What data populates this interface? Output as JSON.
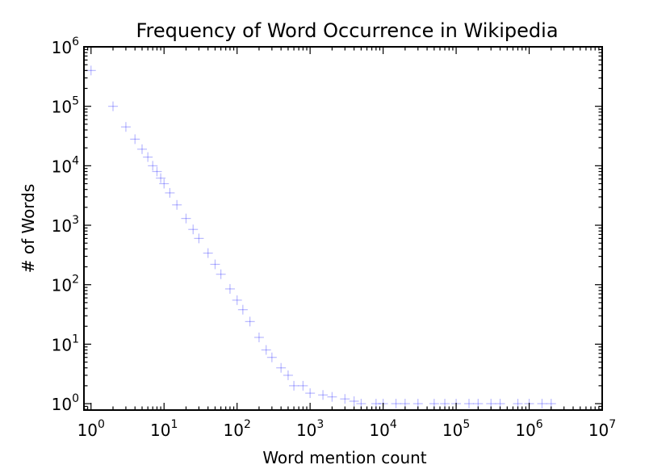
{
  "chart_data": {
    "type": "scatter",
    "title": "Frequency of Word Occurrence in Wikipedia",
    "xlabel": "Word mention count",
    "ylabel": "# of Words",
    "xscale": "log",
    "yscale": "log",
    "xlim": [
      0.8,
      10000000
    ],
    "ylim": [
      0.78,
      1000000
    ],
    "x_ticks": [
      {
        "base": "10",
        "exp": "0",
        "value": 1
      },
      {
        "base": "10",
        "exp": "1",
        "value": 10
      },
      {
        "base": "10",
        "exp": "2",
        "value": 100
      },
      {
        "base": "10",
        "exp": "3",
        "value": 1000
      },
      {
        "base": "10",
        "exp": "4",
        "value": 10000
      },
      {
        "base": "10",
        "exp": "5",
        "value": 100000
      },
      {
        "base": "10",
        "exp": "6",
        "value": 1000000
      },
      {
        "base": "10",
        "exp": "7",
        "value": 10000000
      }
    ],
    "y_ticks": [
      {
        "base": "10",
        "exp": "0",
        "value": 1
      },
      {
        "base": "10",
        "exp": "1",
        "value": 10
      },
      {
        "base": "10",
        "exp": "2",
        "value": 100
      },
      {
        "base": "10",
        "exp": "3",
        "value": 1000
      },
      {
        "base": "10",
        "exp": "4",
        "value": 10000
      },
      {
        "base": "10",
        "exp": "5",
        "value": 100000
      },
      {
        "base": "10",
        "exp": "6",
        "value": 1000000
      }
    ],
    "marker": "+",
    "marker_color": "#0000ff",
    "grid": false,
    "x": [
      1,
      2,
      3,
      4,
      5,
      6,
      7,
      8,
      9,
      10,
      12,
      15,
      20,
      25,
      30,
      40,
      50,
      60,
      80,
      100,
      120,
      150,
      200,
      250,
      300,
      400,
      500,
      600,
      800,
      1000,
      1500,
      2000,
      3000,
      4000,
      5000,
      8000,
      10000,
      15000,
      20000,
      30000,
      50000,
      70000,
      100000,
      150000,
      200000,
      300000,
      400000,
      700000,
      1000000,
      1500000,
      2000000
    ],
    "y": [
      400000,
      100000,
      45000,
      28000,
      19000,
      14000,
      10000,
      8000,
      6200,
      5000,
      3500,
      2200,
      1300,
      850,
      600,
      340,
      220,
      150,
      85,
      55,
      38,
      24,
      13,
      8,
      6,
      4,
      3,
      2,
      2,
      1.5,
      1.4,
      1.3,
      1.2,
      1.1,
      1,
      1,
      1,
      1,
      1,
      1,
      1,
      1,
      1,
      1,
      1,
      1,
      1,
      1,
      1,
      1,
      1
    ]
  }
}
